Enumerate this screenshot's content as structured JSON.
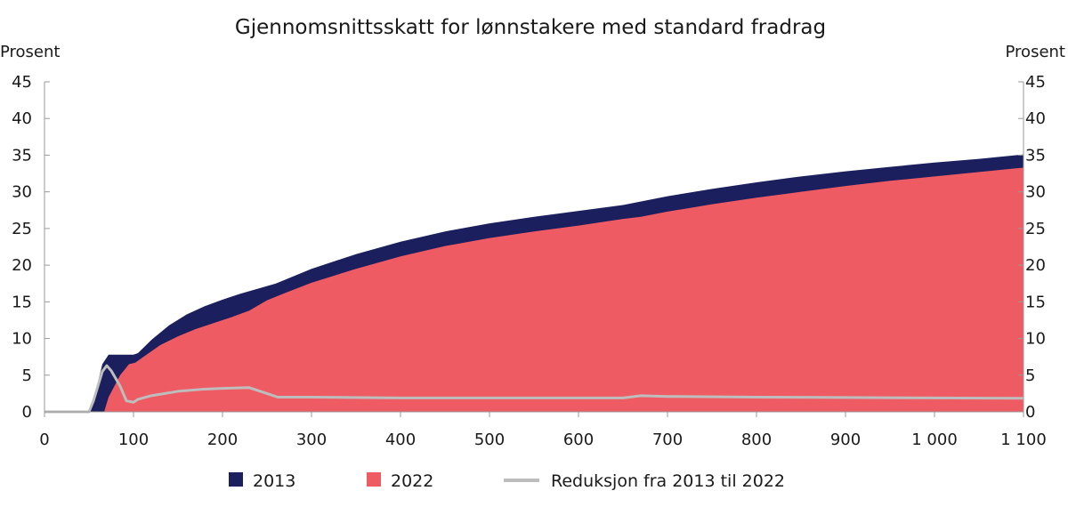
{
  "chart_data": {
    "type": "area",
    "title": "Gjennomsnittsskatt for lønnstakere med standard fradrag",
    "ylabel_left": "Prosent",
    "ylabel_right": "Prosent",
    "xlabel": "",
    "xlim": [
      0,
      1100
    ],
    "ylim": [
      0,
      45
    ],
    "x_ticks": [
      0,
      100,
      200,
      300,
      400,
      500,
      600,
      700,
      800,
      900,
      1000,
      1100
    ],
    "x_tick_labels": [
      "0",
      "100",
      "200",
      "300",
      "400",
      "500",
      "600",
      "700",
      "800",
      "900",
      "1 000",
      "1 100"
    ],
    "y_ticks": [
      0,
      5,
      10,
      15,
      20,
      25,
      30,
      35,
      40,
      45
    ],
    "y_tick_labels": [
      "0",
      "5",
      "10",
      "15",
      "20",
      "25",
      "30",
      "35",
      "40",
      "45"
    ],
    "grid": false,
    "legend_position": "bottom",
    "series": [
      {
        "name": "2013",
        "style": "area",
        "color": "#1b1f5e",
        "points": [
          [
            0,
            0
          ],
          [
            50,
            0
          ],
          [
            58,
            3.0
          ],
          [
            65,
            6.5
          ],
          [
            72,
            7.8
          ],
          [
            80,
            7.8
          ],
          [
            100,
            7.8
          ],
          [
            105,
            8.0
          ],
          [
            120,
            9.8
          ],
          [
            140,
            11.8
          ],
          [
            160,
            13.3
          ],
          [
            180,
            14.4
          ],
          [
            200,
            15.3
          ],
          [
            220,
            16.1
          ],
          [
            240,
            16.8
          ],
          [
            260,
            17.5
          ],
          [
            270,
            18.0
          ],
          [
            300,
            19.5
          ],
          [
            350,
            21.5
          ],
          [
            400,
            23.2
          ],
          [
            450,
            24.6
          ],
          [
            500,
            25.7
          ],
          [
            550,
            26.6
          ],
          [
            600,
            27.4
          ],
          [
            650,
            28.2
          ],
          [
            700,
            29.4
          ],
          [
            750,
            30.4
          ],
          [
            800,
            31.3
          ],
          [
            850,
            32.1
          ],
          [
            900,
            32.8
          ],
          [
            950,
            33.4
          ],
          [
            1000,
            34.0
          ],
          [
            1050,
            34.5
          ],
          [
            1100,
            35.1
          ]
        ]
      },
      {
        "name": "2022",
        "style": "area",
        "color": "#ef5b63",
        "points": [
          [
            0,
            0
          ],
          [
            67,
            0
          ],
          [
            72,
            2.0
          ],
          [
            85,
            5.0
          ],
          [
            95,
            6.5
          ],
          [
            102,
            6.7
          ],
          [
            110,
            7.4
          ],
          [
            130,
            9.1
          ],
          [
            150,
            10.3
          ],
          [
            170,
            11.3
          ],
          [
            190,
            12.1
          ],
          [
            210,
            12.9
          ],
          [
            230,
            13.8
          ],
          [
            250,
            15.2
          ],
          [
            270,
            16.2
          ],
          [
            300,
            17.6
          ],
          [
            350,
            19.5
          ],
          [
            400,
            21.2
          ],
          [
            450,
            22.6
          ],
          [
            500,
            23.7
          ],
          [
            550,
            24.6
          ],
          [
            600,
            25.4
          ],
          [
            650,
            26.3
          ],
          [
            670,
            26.6
          ],
          [
            700,
            27.3
          ],
          [
            750,
            28.3
          ],
          [
            800,
            29.2
          ],
          [
            850,
            30.0
          ],
          [
            900,
            30.8
          ],
          [
            950,
            31.5
          ],
          [
            1000,
            32.1
          ],
          [
            1050,
            32.7
          ],
          [
            1100,
            33.3
          ]
        ]
      },
      {
        "name": "Reduksjon fra 2013 til 2022",
        "style": "line",
        "color": "#bdbdbd",
        "points": [
          [
            0,
            0
          ],
          [
            50,
            0
          ],
          [
            55,
            1.5
          ],
          [
            60,
            3.5
          ],
          [
            65,
            5.5
          ],
          [
            70,
            6.3
          ],
          [
            75,
            5.6
          ],
          [
            85,
            3.5
          ],
          [
            92,
            1.5
          ],
          [
            100,
            1.3
          ],
          [
            105,
            1.7
          ],
          [
            120,
            2.2
          ],
          [
            150,
            2.8
          ],
          [
            180,
            3.1
          ],
          [
            200,
            3.2
          ],
          [
            230,
            3.3
          ],
          [
            250,
            2.5
          ],
          [
            262,
            2.0
          ],
          [
            300,
            2.0
          ],
          [
            400,
            1.9
          ],
          [
            500,
            1.9
          ],
          [
            600,
            1.9
          ],
          [
            650,
            1.9
          ],
          [
            670,
            2.2
          ],
          [
            700,
            2.1
          ],
          [
            800,
            2.0
          ],
          [
            900,
            1.95
          ],
          [
            1000,
            1.9
          ],
          [
            1100,
            1.85
          ]
        ]
      }
    ]
  }
}
